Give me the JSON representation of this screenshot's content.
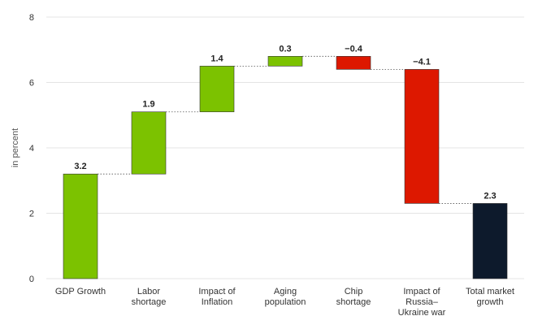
{
  "chart_data": {
    "type": "bar",
    "subtype": "waterfall",
    "title": "",
    "xlabel": "",
    "ylabel": "in percent",
    "ylim": [
      0,
      8
    ],
    "yticks": [
      0,
      2,
      4,
      6,
      8
    ],
    "grid": true,
    "categories": [
      [
        "GDP Growth"
      ],
      [
        "Labor",
        "shortage"
      ],
      [
        "Impact of",
        "Inflation"
      ],
      [
        "Aging",
        "population"
      ],
      [
        "Chip",
        "shortage"
      ],
      [
        "Impact of",
        "Russia–",
        "Ukraine war"
      ],
      [
        "Total market",
        "growth"
      ]
    ],
    "values": [
      3.2,
      1.9,
      1.4,
      0.3,
      -0.4,
      -4.1,
      2.3
    ],
    "value_labels": [
      "3.2",
      "1.9",
      "1.4",
      "0.3",
      "−0.4",
      "−4.1",
      "2.3"
    ],
    "kinds": [
      "increase",
      "increase",
      "increase",
      "increase",
      "decrease",
      "decrease",
      "total"
    ],
    "colors": {
      "increase": "#7cc200",
      "decrease": "#dd1800",
      "total": "#0d1a2c",
      "grid": "#e4e4e4",
      "connector": "#555555"
    }
  }
}
